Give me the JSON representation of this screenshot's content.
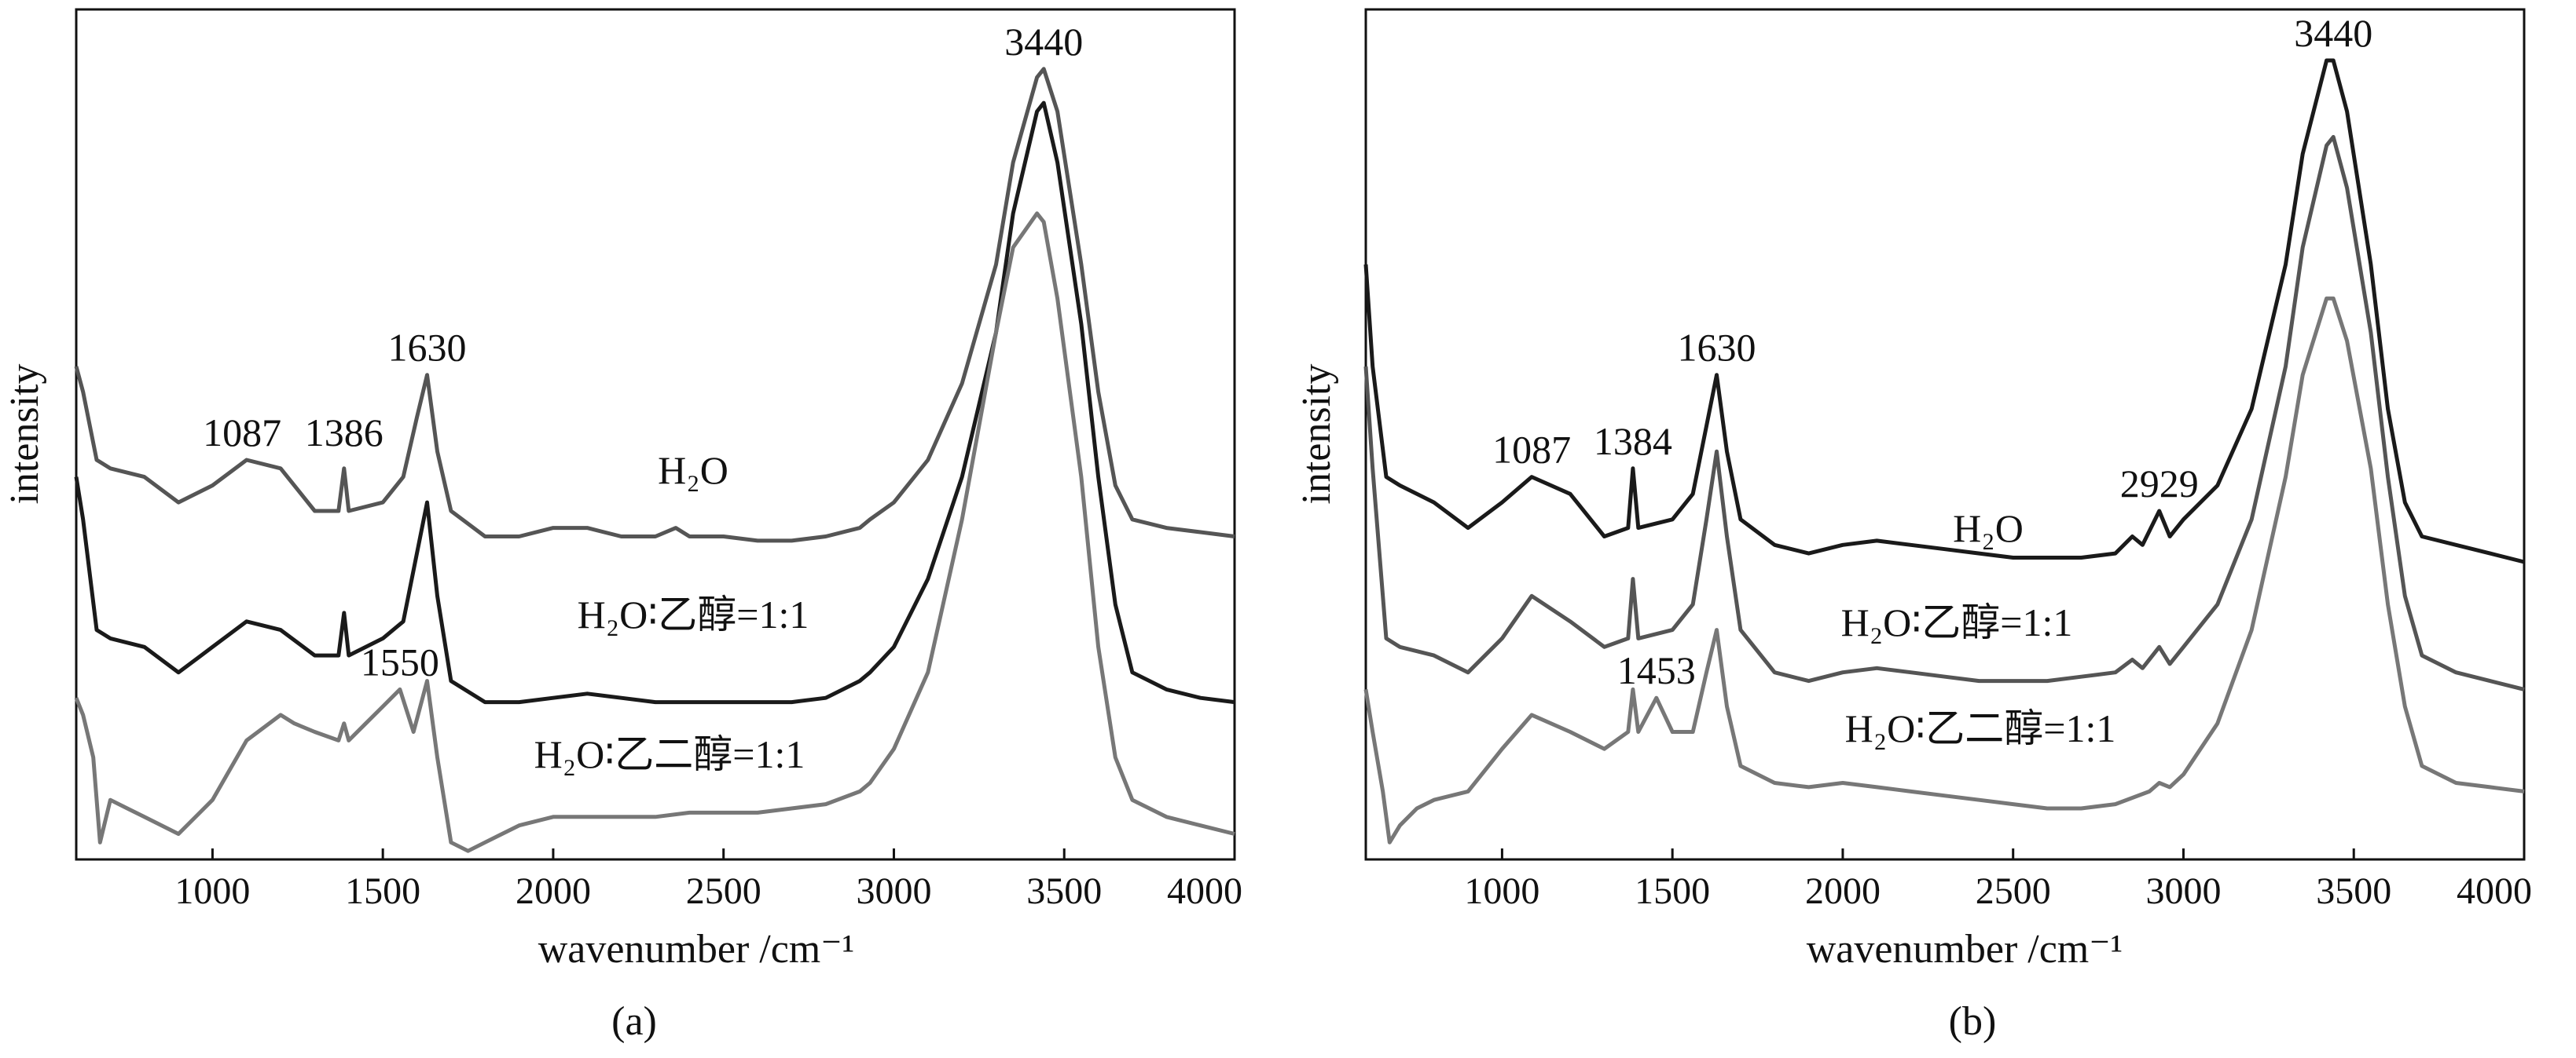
{
  "chart_data": [
    {
      "type": "line",
      "panel_label": "(a)",
      "xlabel": "wavenumber /cm⁻¹",
      "ylabel": "intensity",
      "xlim": [
        600,
        4000
      ],
      "ylim": [
        0,
        1
      ],
      "xticks": [
        1000,
        1500,
        2000,
        2500,
        3000,
        3500,
        4000
      ],
      "grid": false,
      "legend": "none",
      "series": [
        {
          "name": "H₂O",
          "color": "#555555",
          "x": [
            600,
            620,
            660,
            700,
            800,
            900,
            1000,
            1100,
            1200,
            1300,
            1370,
            1386,
            1400,
            1500,
            1560,
            1600,
            1630,
            1660,
            1700,
            1800,
            1900,
            2000,
            2100,
            2200,
            2300,
            2360,
            2400,
            2500,
            2600,
            2700,
            2800,
            2900,
            2930,
            3000,
            3100,
            3200,
            3300,
            3350,
            3420,
            3440,
            3480,
            3550,
            3600,
            3650,
            3700,
            3800,
            3900,
            4000
          ],
          "y": [
            0.58,
            0.55,
            0.47,
            0.46,
            0.45,
            0.42,
            0.44,
            0.47,
            0.46,
            0.41,
            0.41,
            0.46,
            0.41,
            0.42,
            0.45,
            0.52,
            0.57,
            0.48,
            0.41,
            0.38,
            0.38,
            0.39,
            0.39,
            0.38,
            0.38,
            0.39,
            0.38,
            0.38,
            0.375,
            0.375,
            0.38,
            0.39,
            0.4,
            0.42,
            0.47,
            0.56,
            0.7,
            0.82,
            0.92,
            0.93,
            0.88,
            0.7,
            0.55,
            0.44,
            0.4,
            0.39,
            0.385,
            0.38
          ]
        },
        {
          "name": "H₂O∶乙醇=1:1",
          "color": "#1a1a1a",
          "x": [
            600,
            620,
            660,
            700,
            800,
            900,
            1000,
            1100,
            1200,
            1300,
            1370,
            1386,
            1400,
            1500,
            1560,
            1600,
            1630,
            1660,
            1700,
            1800,
            1900,
            2000,
            2100,
            2200,
            2300,
            2400,
            2500,
            2600,
            2700,
            2800,
            2900,
            2930,
            3000,
            3100,
            3200,
            3300,
            3350,
            3420,
            3440,
            3480,
            3550,
            3600,
            3650,
            3700,
            3800,
            3900,
            4000
          ],
          "y": [
            0.45,
            0.4,
            0.27,
            0.26,
            0.25,
            0.22,
            0.25,
            0.28,
            0.27,
            0.24,
            0.24,
            0.29,
            0.24,
            0.26,
            0.28,
            0.36,
            0.42,
            0.31,
            0.21,
            0.185,
            0.185,
            0.19,
            0.195,
            0.19,
            0.185,
            0.185,
            0.185,
            0.185,
            0.185,
            0.19,
            0.21,
            0.22,
            0.25,
            0.33,
            0.45,
            0.62,
            0.76,
            0.88,
            0.89,
            0.82,
            0.63,
            0.45,
            0.3,
            0.22,
            0.2,
            0.19,
            0.185
          ]
        },
        {
          "name": "H₂O∶乙二醇=1:1",
          "color": "#777777",
          "x": [
            600,
            620,
            650,
            670,
            700,
            750,
            800,
            900,
            1000,
            1100,
            1200,
            1240,
            1300,
            1370,
            1386,
            1400,
            1450,
            1500,
            1550,
            1590,
            1630,
            1660,
            1700,
            1750,
            1800,
            1900,
            2000,
            2100,
            2200,
            2300,
            2400,
            2500,
            2600,
            2700,
            2800,
            2900,
            2930,
            3000,
            3100,
            3200,
            3300,
            3350,
            3420,
            3440,
            3480,
            3550,
            3600,
            3650,
            3700,
            3800,
            3900,
            4000
          ],
          "y": [
            0.19,
            0.17,
            0.12,
            0.02,
            0.07,
            0.06,
            0.05,
            0.03,
            0.07,
            0.14,
            0.17,
            0.16,
            0.15,
            0.14,
            0.16,
            0.14,
            0.16,
            0.18,
            0.2,
            0.15,
            0.21,
            0.12,
            0.02,
            0.01,
            0.02,
            0.04,
            0.05,
            0.05,
            0.05,
            0.05,
            0.055,
            0.055,
            0.055,
            0.06,
            0.065,
            0.08,
            0.09,
            0.13,
            0.22,
            0.4,
            0.62,
            0.72,
            0.76,
            0.75,
            0.66,
            0.45,
            0.25,
            0.12,
            0.07,
            0.05,
            0.04,
            0.03
          ]
        }
      ],
      "annotations": [
        {
          "text": "1087",
          "x": 1087,
          "y": 0.47
        },
        {
          "text": "1386",
          "x": 1386,
          "y": 0.47
        },
        {
          "text": "1630",
          "x": 1630,
          "y": 0.57
        },
        {
          "text": "3440",
          "x": 3440,
          "y": 0.93
        },
        {
          "text": "1550",
          "x": 1550,
          "y": 0.2
        }
      ]
    },
    {
      "type": "line",
      "panel_label": "(b)",
      "xlabel": "wavenumber /cm⁻¹",
      "ylabel": "intensity",
      "xlim": [
        600,
        4000
      ],
      "ylim": [
        0,
        1
      ],
      "xticks": [
        1000,
        1500,
        2000,
        2500,
        3000,
        3500,
        4000
      ],
      "grid": false,
      "legend": "none",
      "series": [
        {
          "name": "H₂O",
          "color": "#1a1a1a",
          "x": [
            600,
            620,
            660,
            700,
            800,
            900,
            1000,
            1087,
            1200,
            1300,
            1370,
            1384,
            1400,
            1500,
            1560,
            1600,
            1630,
            1660,
            1700,
            1800,
            1900,
            2000,
            2100,
            2200,
            2300,
            2400,
            2500,
            2600,
            2700,
            2800,
            2850,
            2880,
            2929,
            2960,
            3000,
            3100,
            3200,
            3300,
            3350,
            3420,
            3440,
            3480,
            3550,
            3600,
            3650,
            3700,
            3800,
            3900,
            4000
          ],
          "y": [
            0.7,
            0.58,
            0.45,
            0.44,
            0.42,
            0.39,
            0.42,
            0.45,
            0.43,
            0.38,
            0.39,
            0.46,
            0.39,
            0.4,
            0.43,
            0.51,
            0.57,
            0.48,
            0.4,
            0.37,
            0.36,
            0.37,
            0.375,
            0.37,
            0.365,
            0.36,
            0.355,
            0.355,
            0.355,
            0.36,
            0.38,
            0.37,
            0.41,
            0.38,
            0.4,
            0.44,
            0.53,
            0.7,
            0.83,
            0.94,
            0.94,
            0.88,
            0.7,
            0.53,
            0.42,
            0.38,
            0.37,
            0.36,
            0.35
          ]
        },
        {
          "name": "H₂O∶乙醇=1:1",
          "color": "#555555",
          "x": [
            600,
            620,
            660,
            700,
            800,
            900,
            1000,
            1087,
            1200,
            1300,
            1370,
            1384,
            1400,
            1500,
            1560,
            1600,
            1630,
            1660,
            1700,
            1800,
            1900,
            2000,
            2100,
            2200,
            2300,
            2400,
            2500,
            2600,
            2700,
            2800,
            2850,
            2880,
            2929,
            2960,
            3000,
            3100,
            3200,
            3300,
            3350,
            3420,
            3440,
            3480,
            3550,
            3600,
            3650,
            3700,
            3800,
            3900,
            4000
          ],
          "y": [
            0.58,
            0.46,
            0.26,
            0.25,
            0.24,
            0.22,
            0.26,
            0.31,
            0.28,
            0.25,
            0.26,
            0.33,
            0.26,
            0.27,
            0.3,
            0.4,
            0.48,
            0.38,
            0.27,
            0.22,
            0.21,
            0.22,
            0.225,
            0.22,
            0.215,
            0.21,
            0.21,
            0.21,
            0.215,
            0.22,
            0.235,
            0.225,
            0.25,
            0.23,
            0.25,
            0.3,
            0.4,
            0.58,
            0.72,
            0.84,
            0.85,
            0.79,
            0.62,
            0.45,
            0.31,
            0.24,
            0.22,
            0.21,
            0.2
          ]
        },
        {
          "name": "H₂O∶乙二醇=1:1",
          "color": "#777777",
          "x": [
            600,
            620,
            650,
            670,
            700,
            750,
            800,
            900,
            1000,
            1087,
            1200,
            1300,
            1370,
            1384,
            1400,
            1453,
            1500,
            1560,
            1600,
            1630,
            1660,
            1700,
            1800,
            1900,
            2000,
            2100,
            2200,
            2300,
            2400,
            2500,
            2600,
            2700,
            2800,
            2900,
            2929,
            2960,
            3000,
            3100,
            3200,
            3300,
            3350,
            3420,
            3440,
            3480,
            3550,
            3600,
            3650,
            3700,
            3800,
            3900,
            4000
          ],
          "y": [
            0.2,
            0.15,
            0.08,
            0.02,
            0.04,
            0.06,
            0.07,
            0.08,
            0.13,
            0.17,
            0.15,
            0.13,
            0.15,
            0.2,
            0.15,
            0.19,
            0.15,
            0.15,
            0.22,
            0.27,
            0.18,
            0.11,
            0.09,
            0.085,
            0.09,
            0.085,
            0.08,
            0.075,
            0.07,
            0.065,
            0.06,
            0.06,
            0.065,
            0.08,
            0.09,
            0.085,
            0.1,
            0.16,
            0.27,
            0.45,
            0.57,
            0.66,
            0.66,
            0.61,
            0.46,
            0.3,
            0.18,
            0.11,
            0.09,
            0.085,
            0.08
          ]
        }
      ],
      "annotations": [
        {
          "text": "1087",
          "x": 1087,
          "y": 0.45
        },
        {
          "text": "1384",
          "x": 1384,
          "y": 0.46
        },
        {
          "text": "1630",
          "x": 1630,
          "y": 0.57
        },
        {
          "text": "2929",
          "x": 2929,
          "y": 0.41
        },
        {
          "text": "3440",
          "x": 3440,
          "y": 0.94
        },
        {
          "text": "1453",
          "x": 1453,
          "y": 0.19
        }
      ]
    }
  ]
}
